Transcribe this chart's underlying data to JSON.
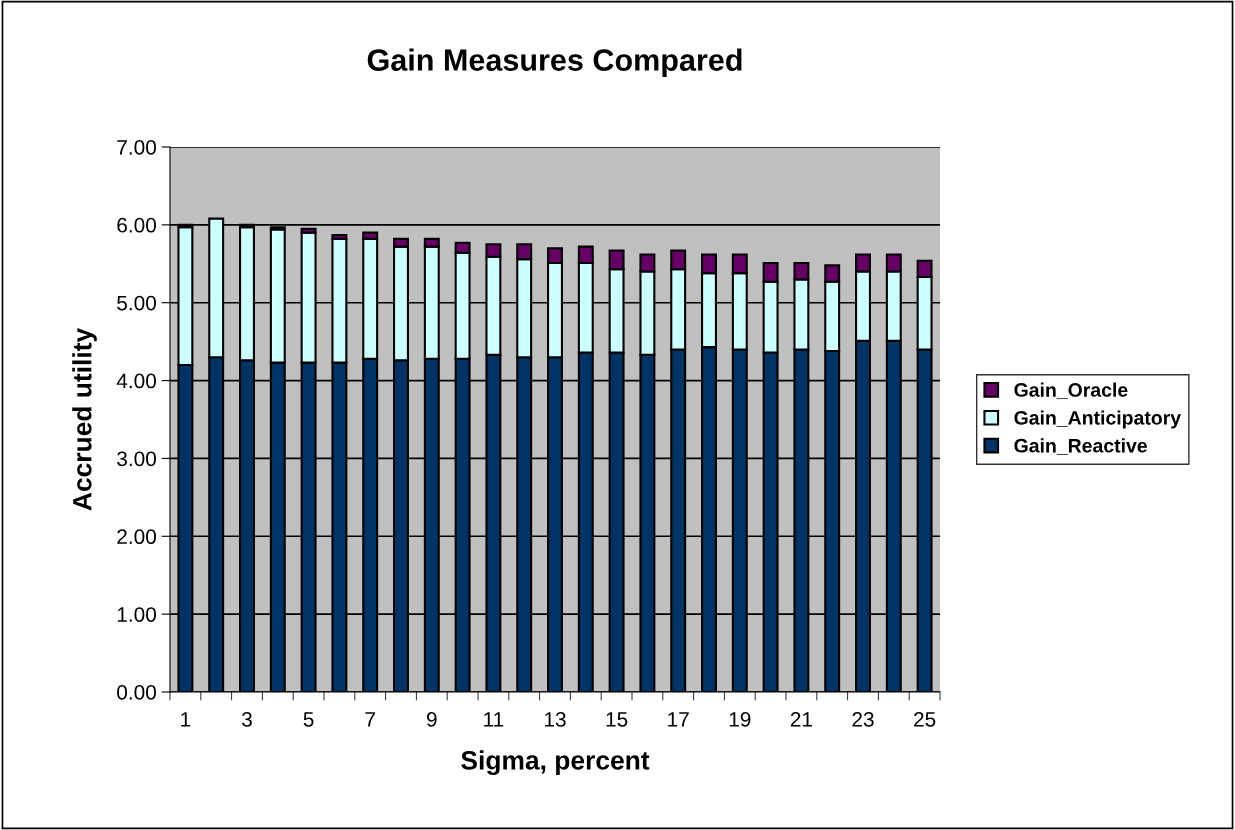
{
  "chart_data": {
    "type": "bar",
    "title": "Gain Measures Compared",
    "xlabel": "Sigma, percent",
    "ylabel": "Accrued utility",
    "categories": [
      "1",
      null,
      "3",
      null,
      "5",
      null,
      "7",
      null,
      "9",
      null,
      "11",
      null,
      "13",
      null,
      "15",
      null,
      "17",
      null,
      "19",
      null,
      "21",
      null,
      "23",
      null,
      "25"
    ],
    "stacked": true,
    "series": [
      {
        "name": "Gain_Reactive",
        "color": "#003366",
        "values": [
          4.2,
          4.3,
          4.26,
          4.23,
          4.23,
          4.23,
          4.28,
          4.26,
          4.28,
          4.28,
          4.33,
          4.3,
          4.3,
          4.36,
          4.36,
          4.33,
          4.4,
          4.43,
          4.4,
          4.36,
          4.4,
          4.38,
          4.51,
          4.51,
          4.4
        ]
      },
      {
        "name": "Gain_Anticipatory",
        "color": "#ccffff",
        "values": [
          1.77,
          1.78,
          1.71,
          1.71,
          1.67,
          1.59,
          1.54,
          1.46,
          1.44,
          1.36,
          1.26,
          1.26,
          1.21,
          1.15,
          1.07,
          1.07,
          1.03,
          0.95,
          0.98,
          0.91,
          0.9,
          0.89,
          0.89,
          0.89,
          0.93
        ]
      },
      {
        "name": "Gain_Oracle",
        "color": "#660066",
        "values": [
          0.03,
          null,
          0.03,
          0.03,
          0.05,
          0.05,
          0.08,
          0.1,
          0.1,
          0.13,
          0.16,
          0.19,
          0.19,
          0.21,
          0.24,
          0.22,
          0.24,
          0.24,
          0.24,
          0.24,
          0.21,
          0.21,
          0.22,
          0.22,
          0.21
        ]
      }
    ],
    "ylim": [
      0,
      7
    ],
    "yticks": [
      {
        "value": 0,
        "label": "0.00"
      },
      {
        "value": 1,
        "label": "1.00"
      },
      {
        "value": 2,
        "label": "2.00"
      },
      {
        "value": 3,
        "label": "3.00"
      },
      {
        "value": 4,
        "label": "4.00"
      },
      {
        "value": 5,
        "label": "5.00"
      },
      {
        "value": 6,
        "label": "6.00"
      },
      {
        "value": 7,
        "label": "7.00"
      }
    ],
    "grid": "y",
    "legend": "right"
  }
}
